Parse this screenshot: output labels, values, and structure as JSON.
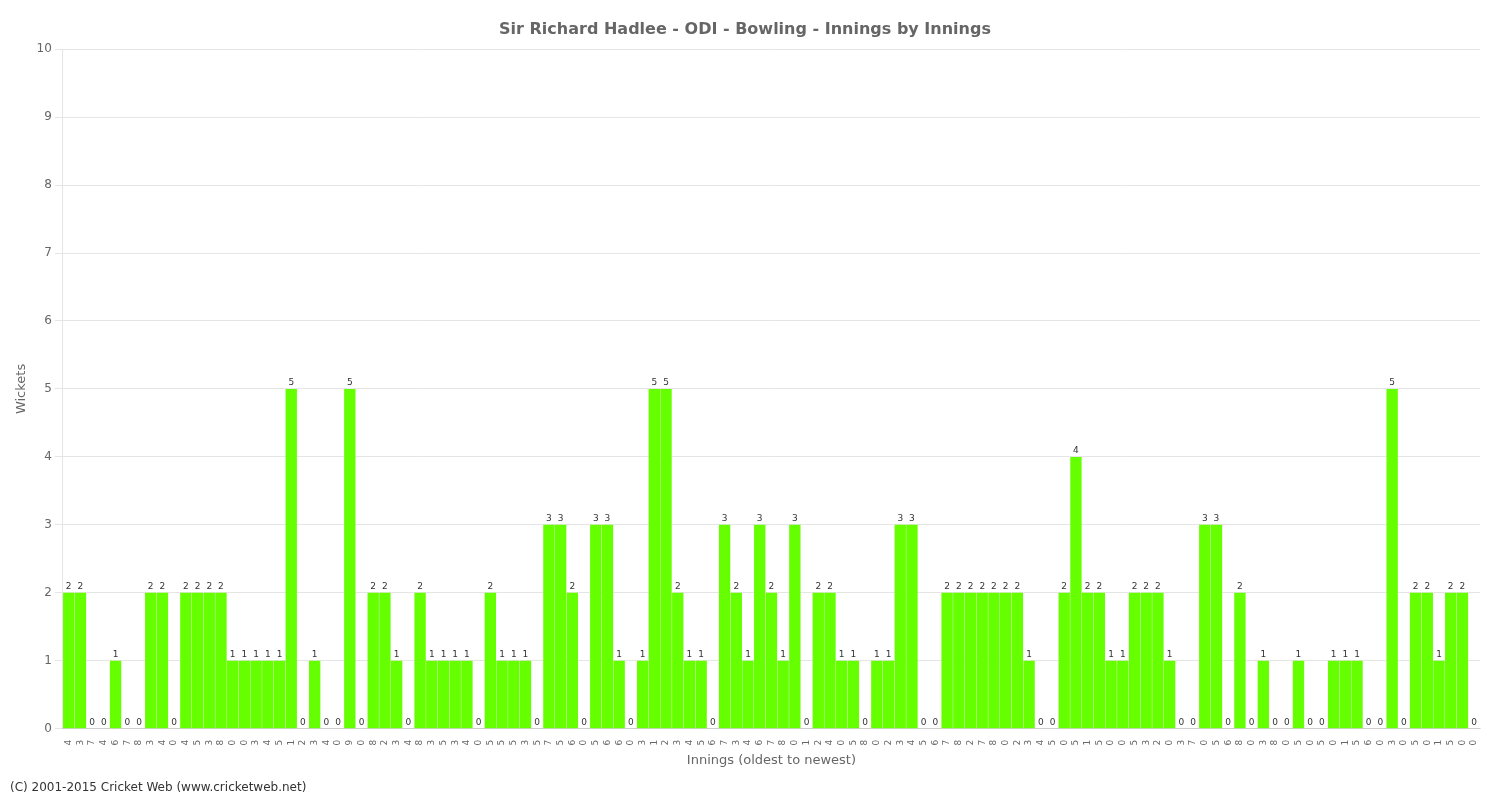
{
  "chart_data": {
    "type": "bar",
    "title": "Sir Richard Hadlee - ODI - Bowling - Innings by Innings",
    "ylabel": "Wickets",
    "xlabel": "Innings (oldest to newest)",
    "annotations": [
      "(C) 2001-2015 Cricket Web (www.cricketweb.net)"
    ],
    "color": "#66ff00",
    "ylim": [
      0,
      10
    ],
    "yticks": [
      0,
      1,
      2,
      3,
      4,
      5,
      6,
      7,
      8,
      9,
      10
    ],
    "grid": true,
    "data_labels": true,
    "categories": [
      "4",
      "3",
      "7",
      "4",
      "6",
      "7",
      "8",
      "3",
      "4",
      "0",
      "4",
      "5",
      "3",
      "8",
      "0",
      "0",
      "3",
      "4",
      "5",
      "1",
      "2",
      "3",
      "4",
      "0",
      "9",
      "0",
      "8",
      "2",
      "3",
      "4",
      "8",
      "3",
      "5",
      "3",
      "4",
      "0",
      "5",
      "5",
      "5",
      "3",
      "5",
      "7",
      "5",
      "6",
      "0",
      "5",
      "6",
      "6",
      "0",
      "3",
      "1",
      "2",
      "3",
      "4",
      "5",
      "6",
      "7",
      "3",
      "4",
      "6",
      "7",
      "8",
      "0",
      "1",
      "2",
      "4",
      "0",
      "5",
      "8",
      "0",
      "2",
      "3",
      "4",
      "5",
      "6",
      "7",
      "8",
      "2",
      "7",
      "8",
      "0",
      "2",
      "3",
      "4",
      "5",
      "0",
      "5",
      "1",
      "5",
      "0",
      "0",
      "5",
      "3",
      "2",
      "0",
      "3",
      "7",
      "0",
      "5",
      "6",
      "8",
      "0",
      "3",
      "8",
      "0",
      "5",
      "0",
      "5",
      "0",
      "1",
      "5",
      "6",
      "0",
      "3",
      "0",
      "5",
      "0",
      "1",
      "5",
      "0",
      "0"
    ],
    "values": [
      2,
      2,
      0,
      0,
      1,
      0,
      0,
      2,
      2,
      0,
      2,
      2,
      2,
      2,
      1,
      1,
      1,
      1,
      1,
      5,
      0,
      1,
      0,
      0,
      5,
      0,
      2,
      2,
      1,
      0,
      2,
      1,
      1,
      1,
      1,
      0,
      2,
      1,
      1,
      1,
      0,
      3,
      3,
      2,
      0,
      3,
      3,
      1,
      0,
      1,
      5,
      5,
      2,
      1,
      1,
      0,
      3,
      2,
      1,
      3,
      2,
      1,
      3,
      0,
      2,
      2,
      1,
      1,
      0,
      1,
      1,
      3,
      3,
      0,
      0,
      2,
      2,
      2,
      2,
      2,
      2,
      2,
      1,
      0,
      0,
      2,
      4,
      2,
      2,
      1,
      1,
      2,
      2,
      2,
      1,
      0,
      0,
      3,
      3,
      0,
      2,
      0,
      1,
      0,
      0,
      1,
      0,
      0,
      1,
      1,
      1,
      0,
      0,
      5,
      0,
      2,
      2,
      1,
      2,
      2,
      0
    ]
  }
}
